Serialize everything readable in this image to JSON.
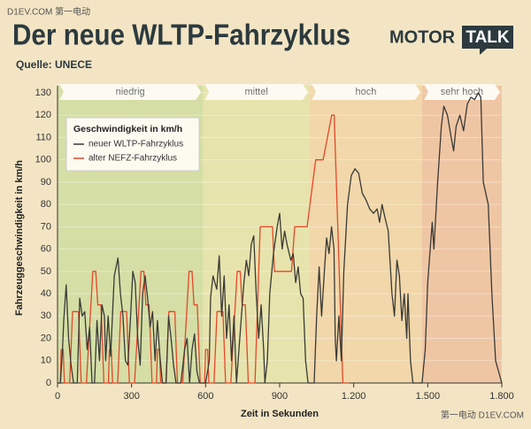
{
  "watermark_top": "D1EV.COM 第一电动",
  "watermark_bottom": "第一电动 D1EV.COM",
  "logo": {
    "left": "MOTOR",
    "right": "TALK"
  },
  "chart_data": {
    "type": "line",
    "title": "Der neue WLTP-Fahrzyklus",
    "subtitle": "Quelle: UNECE",
    "xlabel": "Zeit in Sekunden",
    "ylabel": "Fahrzeuggeschwindigkeit in km/h",
    "legend_title": "Geschwindigkeit in km/h",
    "legend": "upper left",
    "grid": true,
    "xlim": [
      0,
      1800
    ],
    "ylim": [
      0,
      130
    ],
    "xticks": [
      0,
      300,
      600,
      900,
      {
        "value": 1200,
        "label": "1.200"
      },
      {
        "value": 1500,
        "label": "1.500"
      },
      {
        "value": 1800,
        "label": "1.800"
      }
    ],
    "yticks": [
      0,
      10,
      20,
      30,
      40,
      50,
      60,
      70,
      80,
      90,
      100,
      110,
      120,
      130
    ],
    "phases": [
      {
        "name": "niedrig",
        "start": 0,
        "end": 589,
        "color": "#d5dea5"
      },
      {
        "name": "mittel",
        "start": 589,
        "end": 1022,
        "color": "#e7e3ac"
      },
      {
        "name": "hoch",
        "start": 1022,
        "end": 1477,
        "color": "#f1d7a9"
      },
      {
        "name": "sehr hoch",
        "start": 1477,
        "end": 1800,
        "color": "#efc6a4"
      }
    ],
    "series": [
      {
        "name": "neuer WLTP-Fahrzyklus",
        "color": "#3a3a36",
        "x": [
          0,
          12,
          20,
          25,
          35,
          45,
          55,
          65,
          80,
          90,
          100,
          110,
          120,
          130,
          140,
          150,
          160,
          170,
          180,
          190,
          195,
          205,
          215,
          230,
          245,
          255,
          265,
          275,
          285,
          295,
          305,
          315,
          325,
          335,
          345,
          355,
          365,
          375,
          385,
          395,
          405,
          415,
          425,
          440,
          450,
          460,
          470,
          480,
          500,
          515,
          525,
          535,
          545,
          555,
          565,
          575,
          589,
          600,
          615,
          620,
          630,
          645,
          655,
          665,
          675,
          685,
          695,
          705,
          715,
          725,
          735,
          745,
          755,
          765,
          775,
          785,
          795,
          805,
          815,
          825,
          835,
          840,
          850,
          860,
          875,
          890,
          900,
          910,
          920,
          930,
          945,
          955,
          965,
          975,
          985,
          995,
          1005,
          1015,
          1022,
          1040,
          1050,
          1060,
          1070,
          1080,
          1090,
          1100,
          1110,
          1120,
          1125,
          1130,
          1140,
          1150,
          1160,
          1175,
          1190,
          1205,
          1220,
          1235,
          1250,
          1265,
          1280,
          1295,
          1305,
          1315,
          1325,
          1340,
          1355,
          1365,
          1375,
          1385,
          1395,
          1405,
          1415,
          1420,
          1430,
          1440,
          1477,
          1490,
          1500,
          1510,
          1518,
          1525,
          1540,
          1555,
          1565,
          1580,
          1595,
          1605,
          1615,
          1630,
          1645,
          1660,
          1675,
          1690,
          1705,
          1715,
          1725,
          1745,
          1760,
          1775,
          1800
        ],
        "values": [
          0,
          0,
          15,
          28,
          44,
          20,
          8,
          0,
          0,
          38,
          30,
          32,
          15,
          25,
          0,
          0,
          28,
          10,
          35,
          30,
          10,
          30,
          12,
          48,
          56,
          40,
          30,
          10,
          8,
          28,
          50,
          45,
          20,
          8,
          40,
          48,
          38,
          25,
          32,
          10,
          28,
          12,
          0,
          0,
          30,
          20,
          8,
          0,
          0,
          15,
          20,
          0,
          15,
          22,
          5,
          0,
          0,
          0,
          10,
          38,
          48,
          42,
          57,
          30,
          48,
          20,
          35,
          10,
          30,
          0,
          15,
          30,
          45,
          55,
          48,
          62,
          66,
          40,
          20,
          35,
          15,
          0,
          10,
          40,
          58,
          70,
          76,
          60,
          68,
          62,
          55,
          58,
          45,
          52,
          40,
          38,
          10,
          0,
          0,
          0,
          30,
          52,
          30,
          48,
          65,
          58,
          70,
          60,
          20,
          10,
          30,
          10,
          50,
          80,
          93,
          96,
          94,
          85,
          82,
          78,
          76,
          78,
          72,
          80,
          75,
          68,
          40,
          30,
          55,
          48,
          28,
          40,
          20,
          40,
          10,
          0,
          0,
          15,
          45,
          60,
          72,
          60,
          90,
          115,
          124,
          120,
          110,
          104,
          115,
          120,
          113,
          125,
          128,
          127,
          130,
          128,
          90,
          80,
          40,
          10,
          0
        ]
      },
      {
        "name": "alter NEFZ-Fahrzyklus",
        "color": "#e5472a",
        "x": [
          0,
          11,
          15,
          23,
          28,
          49,
          61,
          85,
          96,
          117,
          143,
          155,
          163,
          176,
          188,
          195,
          206,
          210,
          218,
          223,
          244,
          256,
          280,
          291,
          312,
          338,
          350,
          358,
          371,
          383,
          390,
          401,
          405,
          413,
          418,
          439,
          451,
          475,
          486,
          507,
          533,
          545,
          553,
          566,
          578,
          585,
          596,
          600,
          608,
          613,
          634,
          646,
          670,
          681,
          702,
          728,
          740,
          748,
          761,
          773,
          800,
          821,
          871,
          879,
          948,
          961,
          1011,
          1046,
          1076,
          1111,
          1121,
          1156,
          1180
        ],
        "values": [
          0,
          0,
          15,
          15,
          0,
          0,
          32,
          32,
          0,
          0,
          50,
          50,
          35,
          35,
          0,
          0,
          0,
          15,
          15,
          0,
          0,
          32,
          32,
          0,
          0,
          50,
          50,
          35,
          35,
          0,
          0,
          0,
          15,
          15,
          0,
          0,
          32,
          32,
          0,
          0,
          50,
          50,
          35,
          35,
          0,
          0,
          0,
          15,
          15,
          0,
          0,
          32,
          32,
          0,
          0,
          50,
          50,
          35,
          35,
          0,
          0,
          70,
          70,
          50,
          50,
          70,
          70,
          100,
          100,
          120,
          120,
          0,
          0
        ]
      }
    ]
  }
}
